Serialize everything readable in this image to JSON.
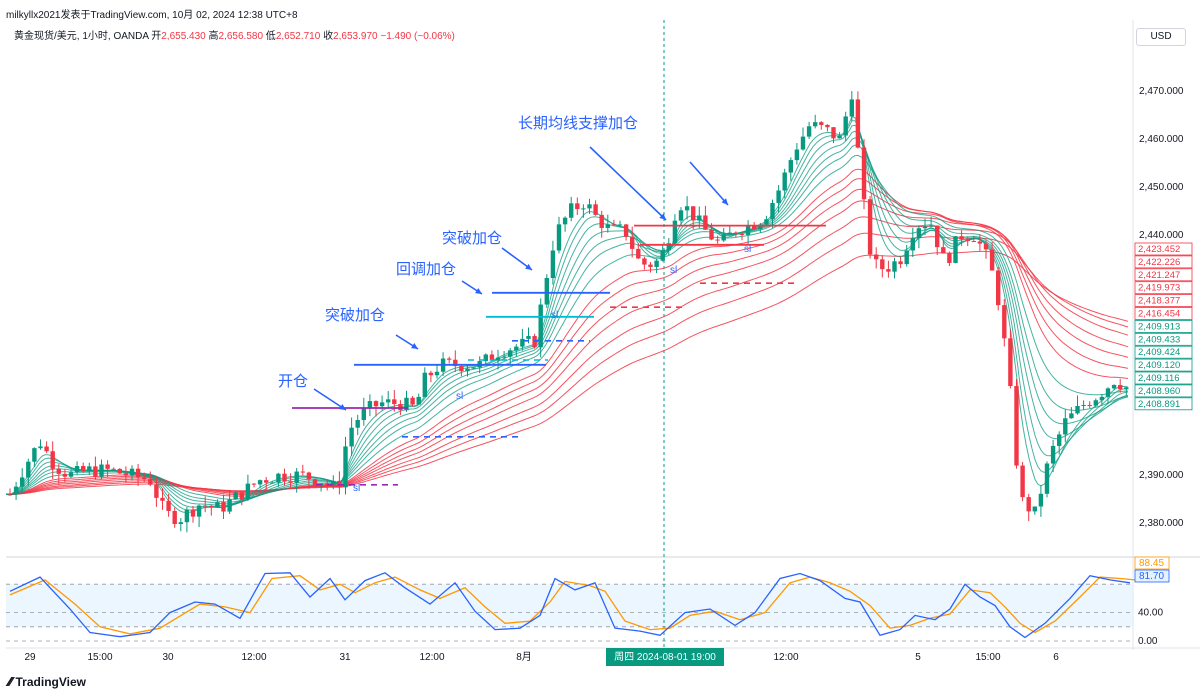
{
  "header": {
    "author_line": "milkyllx2021发表于TradingView.com,  10月 02, 2024 12:38 UTC+8",
    "symbol": "黄金现货/美元, 1小时, OANDA",
    "ohlc": [
      {
        "label": "开",
        "value": "2,655.430"
      },
      {
        "label": "高",
        "value": "2,656.580"
      },
      {
        "label": "低",
        "value": "2,652.710"
      },
      {
        "label": "收",
        "value": "2,653.970"
      }
    ],
    "change": "−1.490 (−0.06%)",
    "currency": "USD"
  },
  "colors": {
    "up": "#089981",
    "down": "#f23645",
    "blue": "#2962ff",
    "purple": "#9c27b0",
    "cyan": "#00bcd4",
    "osc_fast": "#2962ff",
    "osc_slow": "#ff9800"
  },
  "chart_data": {
    "type": "candlestick",
    "title": "黄金现货/美元, 1小时, OANDA",
    "y_axis": {
      "ticks": [
        {
          "value": 2470,
          "label": "2,470.000"
        },
        {
          "value": 2460,
          "label": "2,460.000"
        },
        {
          "value": 2450,
          "label": "2,450.000"
        },
        {
          "value": 2440,
          "label": "2,440.000"
        },
        {
          "value": 2390,
          "label": "2,390.000"
        },
        {
          "value": 2380,
          "label": "2,380.000"
        }
      ],
      "range": [
        2374,
        2479
      ]
    },
    "x_axis": {
      "ticks": [
        {
          "pos": 30,
          "label": "29"
        },
        {
          "pos": 100,
          "label": "15:00"
        },
        {
          "pos": 168,
          "label": "30"
        },
        {
          "pos": 254,
          "label": "12:00"
        },
        {
          "pos": 345,
          "label": "31"
        },
        {
          "pos": 432,
          "label": "12:00"
        },
        {
          "pos": 524,
          "label": "8月"
        },
        {
          "pos": 786,
          "label": "12:00"
        },
        {
          "pos": 918,
          "label": "5"
        },
        {
          "pos": 988,
          "label": "15:00"
        },
        {
          "pos": 1056,
          "label": "6"
        }
      ],
      "crosshair_label": "周四 2024-08-01  19:00"
    },
    "price_labels": [
      {
        "value": 2423.452,
        "label": "2,423.452",
        "kind": "red"
      },
      {
        "value": 2422.226,
        "label": "2,422.226",
        "kind": "red"
      },
      {
        "value": 2421.247,
        "label": "2,421.247",
        "kind": "red"
      },
      {
        "value": 2419.973,
        "label": "2,419.973",
        "kind": "red"
      },
      {
        "value": 2418.377,
        "label": "2,418.377",
        "kind": "red"
      },
      {
        "value": 2416.454,
        "label": "2,416.454",
        "kind": "red"
      },
      {
        "value": 2409.913,
        "label": "2,409.913",
        "kind": "green"
      },
      {
        "value": 2409.433,
        "label": "2,409.433",
        "kind": "green"
      },
      {
        "value": 2409.424,
        "label": "2,409.424",
        "kind": "green"
      },
      {
        "value": 2409.12,
        "label": "2,409.120",
        "kind": "green"
      },
      {
        "value": 2409.116,
        "label": "2,409.116",
        "kind": "green"
      },
      {
        "value": 2408.96,
        "label": "2,408.960",
        "kind": "green"
      },
      {
        "value": 2408.891,
        "label": "2,408.891",
        "kind": "green"
      }
    ],
    "close_path": [
      [
        10,
        2386
      ],
      [
        25,
        2392
      ],
      [
        40,
        2397
      ],
      [
        55,
        2392
      ],
      [
        70,
        2390
      ],
      [
        90,
        2391
      ],
      [
        110,
        2391
      ],
      [
        130,
        2390
      ],
      [
        150,
        2389
      ],
      [
        165,
        2382
      ],
      [
        180,
        2381
      ],
      [
        200,
        2384
      ],
      [
        220,
        2383
      ],
      [
        240,
        2386
      ],
      [
        260,
        2389
      ],
      [
        280,
        2390
      ],
      [
        300,
        2390
      ],
      [
        320,
        2389
      ],
      [
        338,
        2387
      ],
      [
        348,
        2399
      ],
      [
        362,
        2403
      ],
      [
        380,
        2405
      ],
      [
        400,
        2405
      ],
      [
        415,
        2404
      ],
      [
        425,
        2410
      ],
      [
        440,
        2413
      ],
      [
        460,
        2413
      ],
      [
        480,
        2413
      ],
      [
        500,
        2416
      ],
      [
        520,
        2417
      ],
      [
        535,
        2418
      ],
      [
        545,
        2430
      ],
      [
        555,
        2440
      ],
      [
        570,
        2445
      ],
      [
        585,
        2447
      ],
      [
        595,
        2444
      ],
      [
        610,
        2441
      ],
      [
        625,
        2441
      ],
      [
        640,
        2434
      ],
      [
        655,
        2434
      ],
      [
        665,
        2437
      ],
      [
        678,
        2447
      ],
      [
        690,
        2445
      ],
      [
        705,
        2441
      ],
      [
        720,
        2438
      ],
      [
        735,
        2441
      ],
      [
        750,
        2442
      ],
      [
        765,
        2444
      ],
      [
        780,
        2450
      ],
      [
        795,
        2458
      ],
      [
        810,
        2463
      ],
      [
        825,
        2462
      ],
      [
        840,
        2460
      ],
      [
        852,
        2470
      ],
      [
        862,
        2449
      ],
      [
        872,
        2434
      ],
      [
        885,
        2433
      ],
      [
        900,
        2435
      ],
      [
        915,
        2442
      ],
      [
        930,
        2443
      ],
      [
        945,
        2434
      ],
      [
        960,
        2440
      ],
      [
        975,
        2440
      ],
      [
        990,
        2434
      ],
      [
        1000,
        2425
      ],
      [
        1010,
        2408
      ],
      [
        1020,
        2385
      ],
      [
        1035,
        2382
      ],
      [
        1050,
        2394
      ],
      [
        1065,
        2401
      ],
      [
        1085,
        2405
      ],
      [
        1100,
        2407
      ],
      [
        1115,
        2410
      ],
      [
        1128,
        2408
      ]
    ],
    "oscillator": {
      "levels": [
        {
          "value": 80
        },
        {
          "value": 40,
          "label": "40.00"
        },
        {
          "value": 0,
          "label": "0.00"
        }
      ],
      "current": [
        {
          "value": 88.45,
          "label": "88.45",
          "series": "slow"
        },
        {
          "value": 81.7,
          "label": "81.70",
          "series": "fast"
        }
      ],
      "fast": [
        [
          10,
          70
        ],
        [
          40,
          90
        ],
        [
          70,
          45
        ],
        [
          90,
          12
        ],
        [
          120,
          6
        ],
        [
          150,
          12
        ],
        [
          170,
          40
        ],
        [
          195,
          55
        ],
        [
          215,
          52
        ],
        [
          240,
          32
        ],
        [
          265,
          95
        ],
        [
          290,
          96
        ],
        [
          310,
          62
        ],
        [
          330,
          88
        ],
        [
          345,
          58
        ],
        [
          365,
          85
        ],
        [
          385,
          96
        ],
        [
          405,
          75
        ],
        [
          430,
          52
        ],
        [
          455,
          82
        ],
        [
          475,
          42
        ],
        [
          495,
          16
        ],
        [
          520,
          18
        ],
        [
          540,
          36
        ],
        [
          555,
          88
        ],
        [
          575,
          72
        ],
        [
          595,
          82
        ],
        [
          615,
          18
        ],
        [
          640,
          14
        ],
        [
          660,
          8
        ],
        [
          685,
          40
        ],
        [
          710,
          45
        ],
        [
          735,
          22
        ],
        [
          755,
          40
        ],
        [
          780,
          88
        ],
        [
          800,
          95
        ],
        [
          820,
          85
        ],
        [
          845,
          60
        ],
        [
          860,
          55
        ],
        [
          880,
          8
        ],
        [
          900,
          16
        ],
        [
          915,
          36
        ],
        [
          935,
          30
        ],
        [
          950,
          45
        ],
        [
          965,
          80
        ],
        [
          980,
          62
        ],
        [
          995,
          50
        ],
        [
          1010,
          20
        ],
        [
          1025,
          5
        ],
        [
          1045,
          25
        ],
        [
          1070,
          60
        ],
        [
          1090,
          92
        ],
        [
          1110,
          86
        ],
        [
          1130,
          82
        ]
      ],
      "slow": [
        [
          10,
          65
        ],
        [
          45,
          86
        ],
        [
          75,
          52
        ],
        [
          100,
          20
        ],
        [
          130,
          10
        ],
        [
          160,
          18
        ],
        [
          180,
          35
        ],
        [
          200,
          52
        ],
        [
          225,
          48
        ],
        [
          250,
          40
        ],
        [
          272,
          88
        ],
        [
          300,
          92
        ],
        [
          320,
          72
        ],
        [
          340,
          80
        ],
        [
          355,
          68
        ],
        [
          375,
          82
        ],
        [
          395,
          90
        ],
        [
          420,
          72
        ],
        [
          440,
          60
        ],
        [
          465,
          75
        ],
        [
          485,
          48
        ],
        [
          505,
          25
        ],
        [
          530,
          28
        ],
        [
          550,
          55
        ],
        [
          565,
          84
        ],
        [
          590,
          78
        ],
        [
          605,
          70
        ],
        [
          625,
          28
        ],
        [
          650,
          16
        ],
        [
          670,
          18
        ],
        [
          690,
          36
        ],
        [
          715,
          42
        ],
        [
          740,
          30
        ],
        [
          765,
          40
        ],
        [
          790,
          82
        ],
        [
          810,
          90
        ],
        [
          830,
          82
        ],
        [
          850,
          70
        ],
        [
          870,
          50
        ],
        [
          890,
          18
        ],
        [
          910,
          22
        ],
        [
          930,
          32
        ],
        [
          950,
          38
        ],
        [
          970,
          72
        ],
        [
          990,
          68
        ],
        [
          1005,
          48
        ],
        [
          1020,
          25
        ],
        [
          1035,
          12
        ],
        [
          1055,
          28
        ],
        [
          1080,
          62
        ],
        [
          1100,
          90
        ],
        [
          1120,
          88
        ],
        [
          1135,
          86
        ]
      ]
    },
    "annotations": [
      {
        "text": "开仓",
        "pos": [
          278,
          386
        ]
      },
      {
        "text": "突破加仓",
        "pos": [
          325,
          320
        ]
      },
      {
        "text": "回调加仓",
        "pos": [
          396,
          274
        ]
      },
      {
        "text": "突破加仓",
        "pos": [
          442,
          243
        ]
      },
      {
        "text": "长期均线支撑加仓",
        "pos": [
          518,
          128
        ]
      },
      {
        "text": "sl",
        "pos": [
          353,
          491
        ]
      },
      {
        "text": "sl",
        "pos": [
          456,
          399
        ]
      },
      {
        "text": "sl",
        "pos": [
          551,
          318
        ]
      },
      {
        "text": "sl",
        "pos": [
          670,
          273
        ]
      },
      {
        "text": "sl",
        "pos": [
          744,
          252
        ]
      }
    ]
  },
  "footer": {
    "brand": "TradingView"
  }
}
